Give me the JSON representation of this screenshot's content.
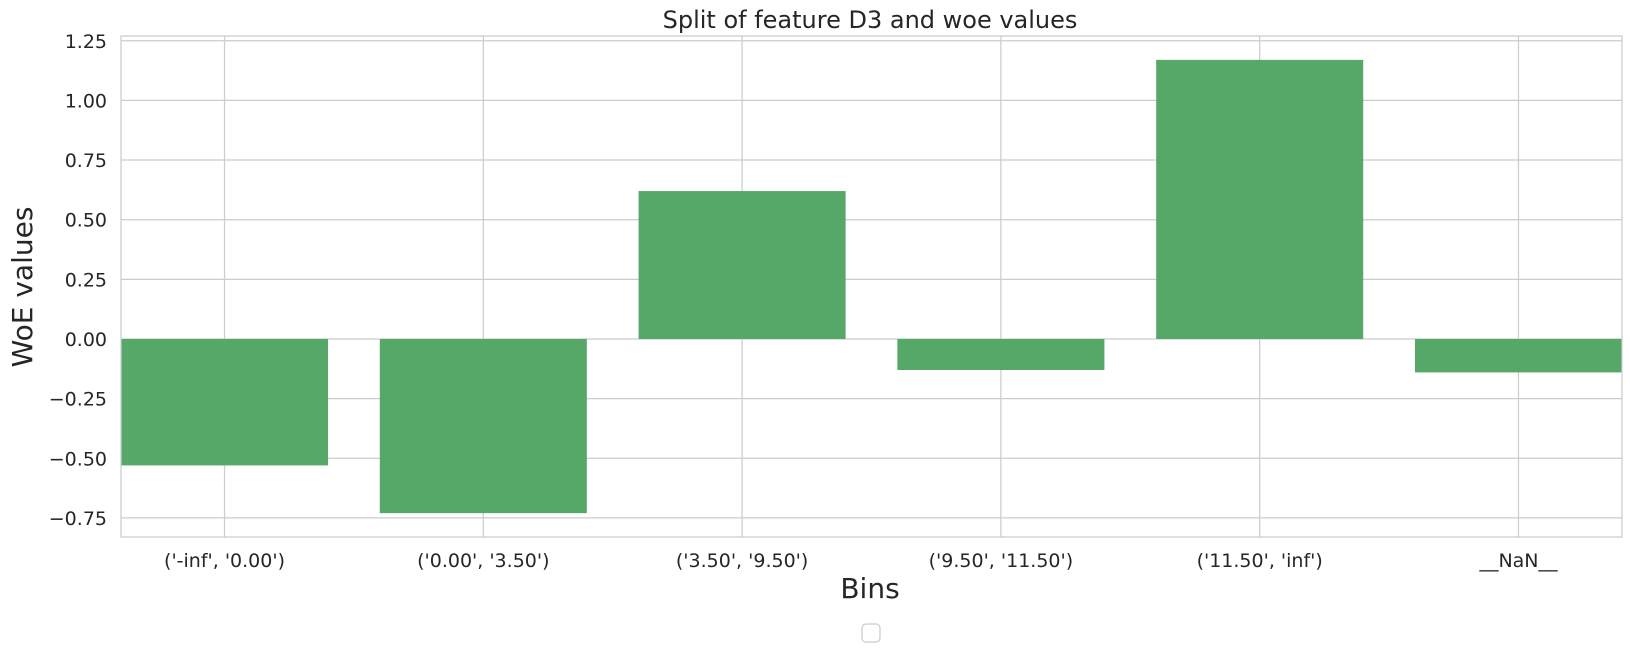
{
  "chart_data": {
    "type": "bar",
    "title": "Split of feature D3 and woe values",
    "xlabel": "Bins",
    "ylabel": "WoE values",
    "categories": [
      "('-inf', '0.00')",
      "('0.00', '3.50')",
      "('3.50', '9.50')",
      "('9.50', '11.50')",
      "('11.50', 'inf')",
      "__NaN__"
    ],
    "values": [
      -0.53,
      -0.73,
      0.62,
      -0.13,
      1.17,
      -0.14
    ],
    "ylim": [
      -0.83,
      1.27
    ],
    "yticks": [
      -0.75,
      -0.5,
      -0.25,
      0.0,
      0.25,
      0.5,
      0.75,
      1.0,
      1.25
    ],
    "ytick_labels": [
      "−0.75",
      "−0.50",
      "−0.25",
      "0.00",
      "0.25",
      "0.50",
      "0.75",
      "1.00",
      "1.25"
    ],
    "grid": true,
    "legend": "bottom-center, empty",
    "colors": {
      "bar": "#55a868",
      "grid": "#cccccc",
      "axis": "#cccccc",
      "text": "#262626"
    }
  }
}
